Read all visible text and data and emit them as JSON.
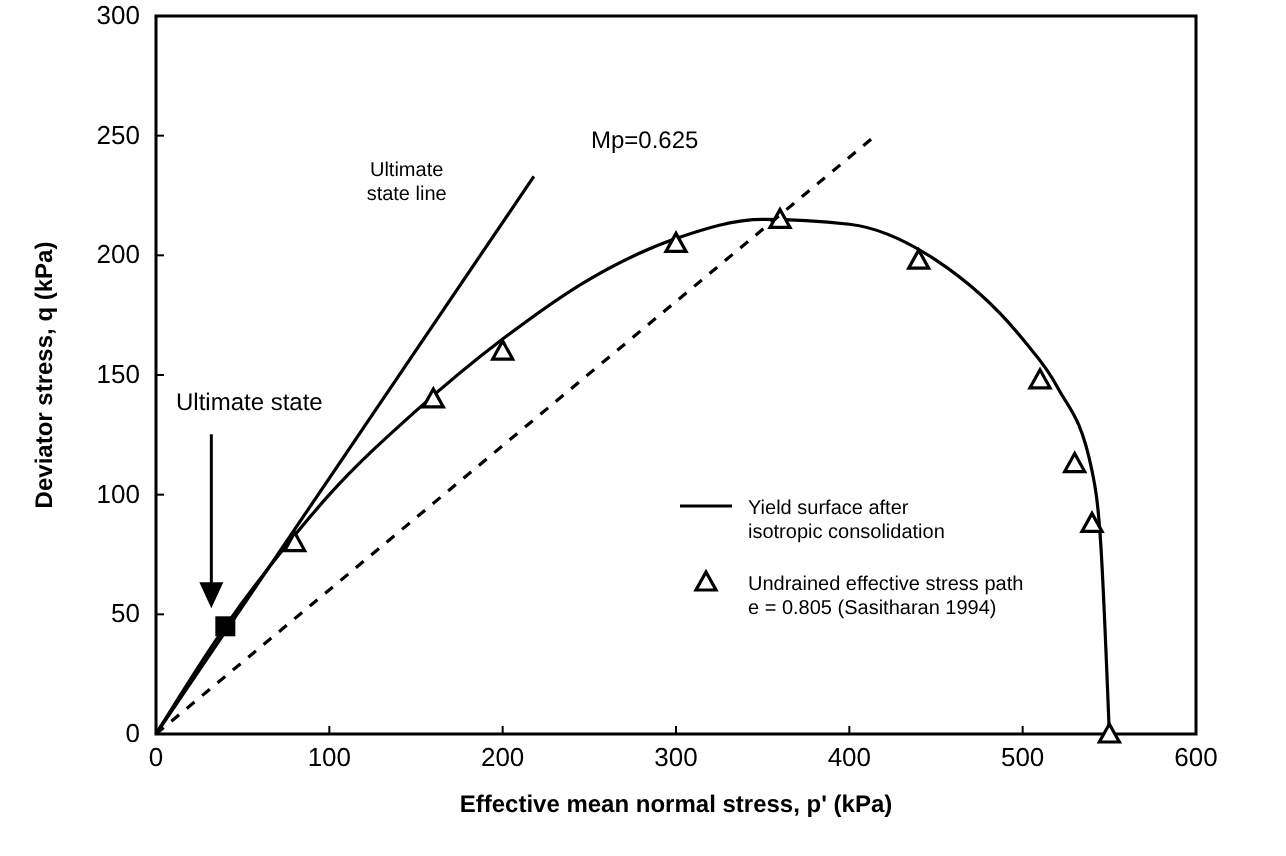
{
  "chart_data": {
    "type": "line",
    "xlabel": "Effective mean normal stress, p' (kPa)",
    "ylabel": "Deviator stress, q (kPa)",
    "xlim": [
      0,
      600
    ],
    "xticks": [
      0,
      100,
      200,
      300,
      400,
      500,
      600
    ],
    "ylim": [
      0,
      300
    ],
    "yticks": [
      0,
      50,
      100,
      150,
      200,
      250,
      300
    ],
    "grid": false,
    "legend": "bottom right",
    "series": [
      {
        "name": "Yield surface after\nisotropic consolidation",
        "color": "#000000",
        "line_style": "solid",
        "marker": "none",
        "x": [
          0,
          40,
          80,
          100,
          150,
          200,
          250,
          300,
          350,
          400,
          450,
          500,
          520,
          540,
          545,
          550
        ],
        "values": [
          0,
          45,
          83,
          100,
          135,
          165,
          190,
          207,
          215,
          213,
          198,
          165,
          145,
          110,
          80,
          0
        ]
      },
      {
        "name": "Undrained effective stress path\ne = 0.805 (Sasitharan 1994)",
        "type": "scatter",
        "color": "#000000",
        "marker": "triangle",
        "x": [
          80,
          160,
          200,
          300,
          360,
          440,
          510,
          530,
          540,
          550
        ],
        "values": [
          80,
          140,
          160,
          205,
          215,
          198,
          148,
          113,
          88,
          0
        ]
      },
      {
        "color": "#000000",
        "line_style": "solid",
        "marker": "none",
        "x": [
          0,
          218
        ],
        "values": [
          0,
          233
        ]
      },
      {
        "color": "#000000",
        "line_style": "dashed",
        "marker": "none",
        "x": [
          0,
          415
        ],
        "values": [
          0,
          250
        ]
      },
      {
        "type": "scatter",
        "color": "#000000",
        "marker": "square",
        "x": [
          40
        ],
        "values": [
          45
        ]
      }
    ],
    "annotations": [
      {
        "text": "Ultimate state line",
        "x": 200,
        "y": 214
      },
      "Mp=0.625",
      "Ultimate state"
    ]
  }
}
